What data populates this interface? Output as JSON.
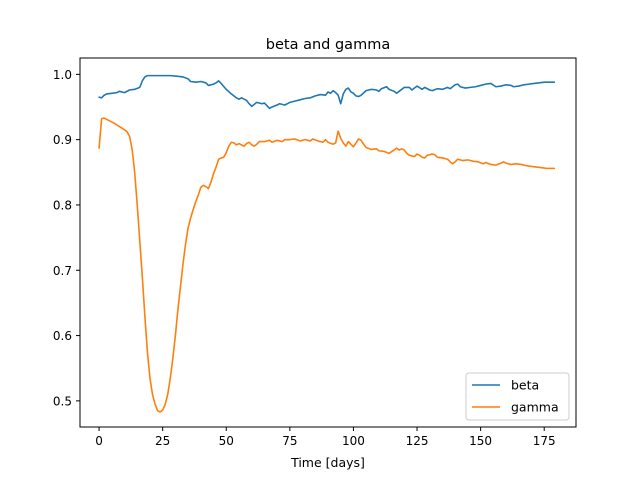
{
  "chart_data": {
    "type": "line",
    "title": "beta and gamma",
    "xlabel": "Time [days]",
    "ylabel": "",
    "xlim": [
      -7.5,
      187.5
    ],
    "ylim": [
      0.46,
      1.025
    ],
    "xticks": [
      0,
      25,
      50,
      75,
      100,
      125,
      150,
      175
    ],
    "yticks": [
      0.5,
      0.6,
      0.7,
      0.8,
      0.9,
      1.0
    ],
    "ytick_labels": [
      "0.5",
      "0.6",
      "0.7",
      "0.8",
      "0.9",
      "1.0"
    ],
    "grid": false,
    "legend_position": "lower-right",
    "series": [
      {
        "name": "beta",
        "color": "#1f77b4",
        "points": [
          [
            0,
            0.965
          ],
          [
            1,
            0.964
          ],
          [
            2,
            0.968
          ],
          [
            3,
            0.97
          ],
          [
            5,
            0.971
          ],
          [
            7,
            0.972
          ],
          [
            8,
            0.974
          ],
          [
            10,
            0.972
          ],
          [
            12,
            0.976
          ],
          [
            14,
            0.977
          ],
          [
            16,
            0.98
          ],
          [
            17,
            0.99
          ],
          [
            18,
            0.996
          ],
          [
            19,
            0.998
          ],
          [
            22,
            0.998
          ],
          [
            25,
            0.998
          ],
          [
            28,
            0.998
          ],
          [
            31,
            0.997
          ],
          [
            33,
            0.996
          ],
          [
            35,
            0.993
          ],
          [
            36,
            0.989
          ],
          [
            38,
            0.988
          ],
          [
            40,
            0.989
          ],
          [
            42,
            0.987
          ],
          [
            43,
            0.983
          ],
          [
            45,
            0.985
          ],
          [
            46,
            0.987
          ],
          [
            47,
            0.99
          ],
          [
            48,
            0.986
          ],
          [
            50,
            0.977
          ],
          [
            52,
            0.97
          ],
          [
            54,
            0.964
          ],
          [
            55,
            0.962
          ],
          [
            56,
            0.964
          ],
          [
            58,
            0.96
          ],
          [
            59,
            0.955
          ],
          [
            60,
            0.951
          ],
          [
            61,
            0.954
          ],
          [
            62,
            0.957
          ],
          [
            64,
            0.955
          ],
          [
            65,
            0.956
          ],
          [
            66,
            0.952
          ],
          [
            67,
            0.948
          ],
          [
            68,
            0.95
          ],
          [
            70,
            0.953
          ],
          [
            71,
            0.955
          ],
          [
            73,
            0.953
          ],
          [
            75,
            0.957
          ],
          [
            77,
            0.959
          ],
          [
            79,
            0.961
          ],
          [
            81,
            0.963
          ],
          [
            83,
            0.964
          ],
          [
            85,
            0.967
          ],
          [
            87,
            0.969
          ],
          [
            89,
            0.968
          ],
          [
            90,
            0.973
          ],
          [
            91,
            0.971
          ],
          [
            92,
            0.975
          ],
          [
            93,
            0.972
          ],
          [
            94,
            0.968
          ],
          [
            95,
            0.955
          ],
          [
            96,
            0.97
          ],
          [
            97,
            0.977
          ],
          [
            98,
            0.979
          ],
          [
            99,
            0.973
          ],
          [
            100,
            0.971
          ],
          [
            101,
            0.967
          ],
          [
            102,
            0.966
          ],
          [
            103,
            0.968
          ],
          [
            105,
            0.975
          ],
          [
            107,
            0.977
          ],
          [
            109,
            0.976
          ],
          [
            110,
            0.974
          ],
          [
            111,
            0.978
          ],
          [
            113,
            0.981
          ],
          [
            114,
            0.977
          ],
          [
            116,
            0.974
          ],
          [
            117,
            0.971
          ],
          [
            118,
            0.974
          ],
          [
            120,
            0.98
          ],
          [
            122,
            0.98
          ],
          [
            123,
            0.976
          ],
          [
            124,
            0.979
          ],
          [
            125,
            0.982
          ],
          [
            127,
            0.977
          ],
          [
            128,
            0.98
          ],
          [
            130,
            0.976
          ],
          [
            131,
            0.975
          ],
          [
            133,
            0.978
          ],
          [
            135,
            0.977
          ],
          [
            137,
            0.98
          ],
          [
            138,
            0.978
          ],
          [
            140,
            0.984
          ],
          [
            141,
            0.985
          ],
          [
            142,
            0.981
          ],
          [
            144,
            0.979
          ],
          [
            146,
            0.98
          ],
          [
            148,
            0.981
          ],
          [
            150,
            0.983
          ],
          [
            152,
            0.985
          ],
          [
            154,
            0.986
          ],
          [
            156,
            0.981
          ],
          [
            158,
            0.982
          ],
          [
            160,
            0.984
          ],
          [
            162,
            0.983
          ],
          [
            163,
            0.981
          ],
          [
            165,
            0.982
          ],
          [
            167,
            0.984
          ],
          [
            169,
            0.985
          ],
          [
            171,
            0.986
          ],
          [
            173,
            0.987
          ],
          [
            175,
            0.988
          ],
          [
            177,
            0.988
          ],
          [
            179,
            0.988
          ]
        ]
      },
      {
        "name": "gamma",
        "color": "#ff7f0e",
        "points": [
          [
            0,
            0.887
          ],
          [
            1,
            0.932
          ],
          [
            2,
            0.933
          ],
          [
            4,
            0.929
          ],
          [
            6,
            0.925
          ],
          [
            8,
            0.92
          ],
          [
            10,
            0.915
          ],
          [
            11,
            0.912
          ],
          [
            12,
            0.905
          ],
          [
            13,
            0.885
          ],
          [
            14,
            0.85
          ],
          [
            15,
            0.8
          ],
          [
            16,
            0.745
          ],
          [
            17,
            0.69
          ],
          [
            18,
            0.63
          ],
          [
            19,
            0.575
          ],
          [
            20,
            0.535
          ],
          [
            21,
            0.51
          ],
          [
            22,
            0.495
          ],
          [
            23,
            0.485
          ],
          [
            24,
            0.483
          ],
          [
            25,
            0.486
          ],
          [
            26,
            0.495
          ],
          [
            27,
            0.51
          ],
          [
            28,
            0.535
          ],
          [
            29,
            0.565
          ],
          [
            30,
            0.6
          ],
          [
            31,
            0.64
          ],
          [
            32,
            0.675
          ],
          [
            33,
            0.71
          ],
          [
            34,
            0.74
          ],
          [
            35,
            0.765
          ],
          [
            36,
            0.78
          ],
          [
            37,
            0.793
          ],
          [
            38,
            0.805
          ],
          [
            39,
            0.815
          ],
          [
            40,
            0.827
          ],
          [
            41,
            0.83
          ],
          [
            42,
            0.828
          ],
          [
            43,
            0.825
          ],
          [
            44,
            0.835
          ],
          [
            45,
            0.848
          ],
          [
            46,
            0.858
          ],
          [
            47,
            0.87
          ],
          [
            48,
            0.872
          ],
          [
            49,
            0.873
          ],
          [
            50,
            0.88
          ],
          [
            51,
            0.89
          ],
          [
            52,
            0.896
          ],
          [
            53,
            0.895
          ],
          [
            54,
            0.892
          ],
          [
            55,
            0.894
          ],
          [
            56,
            0.892
          ],
          [
            57,
            0.89
          ],
          [
            58,
            0.894
          ],
          [
            59,
            0.896
          ],
          [
            60,
            0.892
          ],
          [
            61,
            0.89
          ],
          [
            62,
            0.893
          ],
          [
            63,
            0.897
          ],
          [
            65,
            0.897
          ],
          [
            67,
            0.899
          ],
          [
            68,
            0.896
          ],
          [
            70,
            0.899
          ],
          [
            72,
            0.897
          ],
          [
            73,
            0.9
          ],
          [
            75,
            0.9
          ],
          [
            77,
            0.901
          ],
          [
            79,
            0.898
          ],
          [
            81,
            0.9
          ],
          [
            83,
            0.898
          ],
          [
            84,
            0.901
          ],
          [
            86,
            0.898
          ],
          [
            88,
            0.896
          ],
          [
            89,
            0.9
          ],
          [
            90,
            0.896
          ],
          [
            92,
            0.893
          ],
          [
            93,
            0.895
          ],
          [
            94,
            0.913
          ],
          [
            95,
            0.902
          ],
          [
            96,
            0.895
          ],
          [
            97,
            0.89
          ],
          [
            98,
            0.897
          ],
          [
            99,
            0.893
          ],
          [
            100,
            0.889
          ],
          [
            101,
            0.895
          ],
          [
            102,
            0.901
          ],
          [
            103,
            0.899
          ],
          [
            104,
            0.893
          ],
          [
            105,
            0.888
          ],
          [
            107,
            0.885
          ],
          [
            109,
            0.886
          ],
          [
            110,
            0.883
          ],
          [
            112,
            0.882
          ],
          [
            114,
            0.879
          ],
          [
            116,
            0.884
          ],
          [
            117,
            0.887
          ],
          [
            118,
            0.884
          ],
          [
            119,
            0.886
          ],
          [
            120,
            0.884
          ],
          [
            121,
            0.879
          ],
          [
            122,
            0.876
          ],
          [
            124,
            0.874
          ],
          [
            125,
            0.878
          ],
          [
            126,
            0.876
          ],
          [
            127,
            0.873
          ],
          [
            128,
            0.872
          ],
          [
            129,
            0.876
          ],
          [
            131,
            0.878
          ],
          [
            132,
            0.877
          ],
          [
            133,
            0.873
          ],
          [
            135,
            0.872
          ],
          [
            137,
            0.87
          ],
          [
            138,
            0.866
          ],
          [
            139,
            0.863
          ],
          [
            140,
            0.866
          ],
          [
            141,
            0.87
          ],
          [
            143,
            0.868
          ],
          [
            145,
            0.869
          ],
          [
            147,
            0.867
          ],
          [
            149,
            0.866
          ],
          [
            151,
            0.863
          ],
          [
            152,
            0.865
          ],
          [
            154,
            0.862
          ],
          [
            156,
            0.861
          ],
          [
            158,
            0.864
          ],
          [
            159,
            0.866
          ],
          [
            160,
            0.864
          ],
          [
            162,
            0.862
          ],
          [
            164,
            0.863
          ],
          [
            166,
            0.862
          ],
          [
            168,
            0.86
          ],
          [
            170,
            0.859
          ],
          [
            172,
            0.858
          ],
          [
            174,
            0.857
          ],
          [
            176,
            0.856
          ],
          [
            178,
            0.856
          ],
          [
            179,
            0.856
          ]
        ]
      }
    ]
  }
}
